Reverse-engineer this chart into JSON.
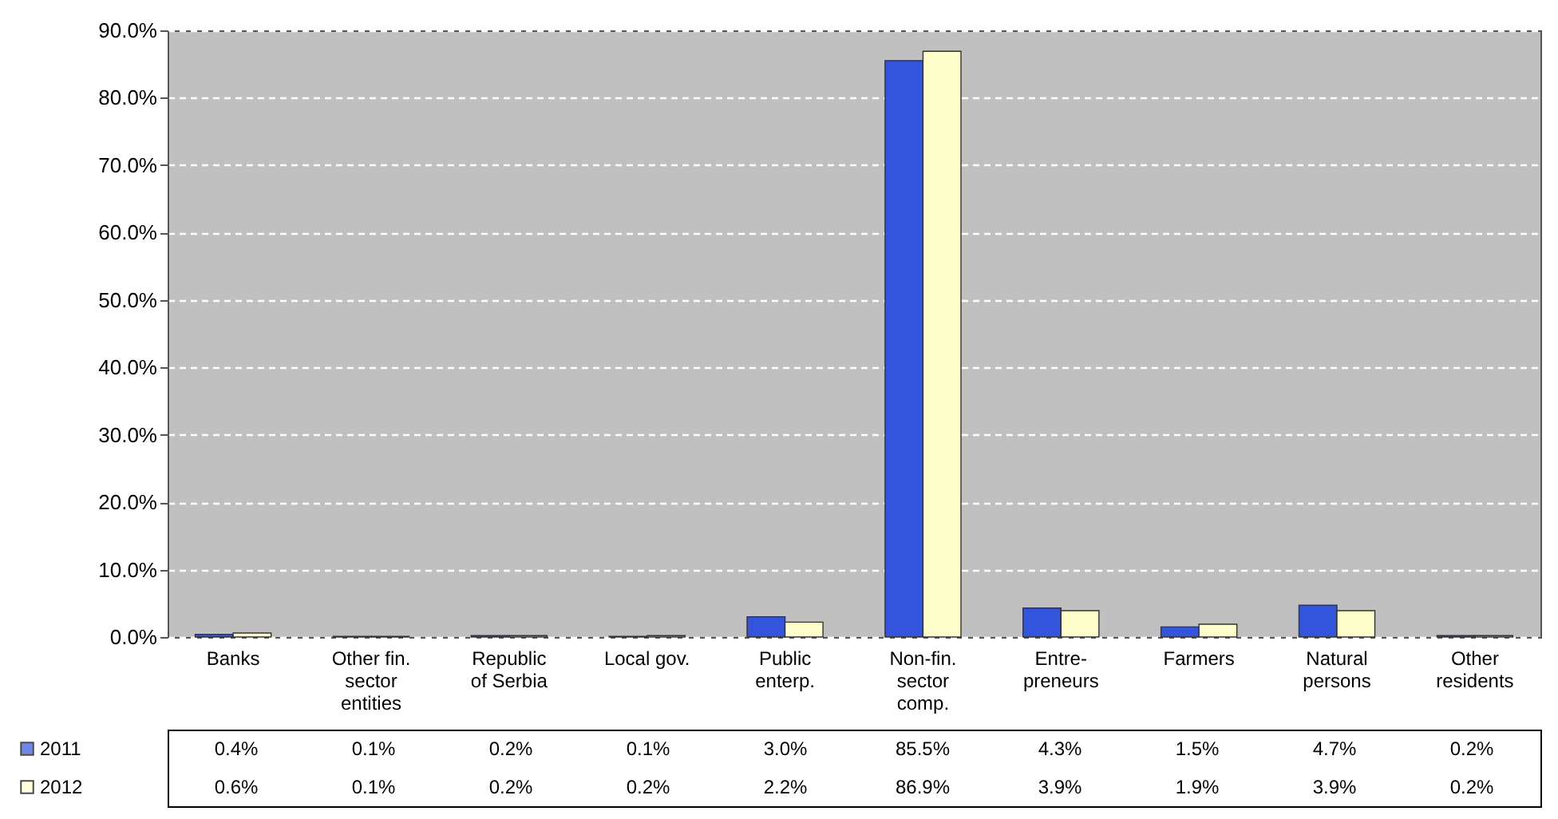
{
  "chart_data": {
    "type": "bar",
    "categories": [
      "Banks",
      "Other fin. sector entities",
      "Republic of Serbia",
      "Local gov.",
      "Public enterp.",
      "Non-fin. sector comp.",
      "Entre-preneurs",
      "Farmers",
      "Natural persons",
      "Other residents"
    ],
    "series": [
      {
        "name": "2011",
        "color": "#3355dd",
        "values": [
          0.4,
          0.1,
          0.2,
          0.1,
          3.0,
          85.5,
          4.3,
          1.5,
          4.7,
          0.2
        ],
        "value_labels": [
          "0.4%",
          "0.1%",
          "0.2%",
          "0.1%",
          "3.0%",
          "85.5%",
          "4.3%",
          "1.5%",
          "4.7%",
          "0.2%"
        ]
      },
      {
        "name": "2012",
        "color": "#ffffcc",
        "values": [
          0.6,
          0.1,
          0.2,
          0.2,
          2.2,
          86.9,
          3.9,
          1.9,
          3.9,
          0.2
        ],
        "value_labels": [
          "0.6%",
          "0.1%",
          "0.2%",
          "0.2%",
          "2.2%",
          "86.9%",
          "3.9%",
          "1.9%",
          "3.9%",
          "0.2%"
        ]
      }
    ],
    "ylim": [
      0,
      90
    ],
    "yticks": [
      {
        "value": 0,
        "label": "0.0%"
      },
      {
        "value": 10,
        "label": "10.0%"
      },
      {
        "value": 20,
        "label": "20.0%"
      },
      {
        "value": 30,
        "label": "30.0%"
      },
      {
        "value": 40,
        "label": "40.0%"
      },
      {
        "value": 50,
        "label": "50.0%"
      },
      {
        "value": 60,
        "label": "60.0%"
      },
      {
        "value": 70,
        "label": "70.0%"
      },
      {
        "value": 80,
        "label": "80.0%"
      },
      {
        "value": 90,
        "label": "90.0%"
      }
    ],
    "grid": true,
    "line_style": "dashed",
    "legend": "bottom"
  }
}
